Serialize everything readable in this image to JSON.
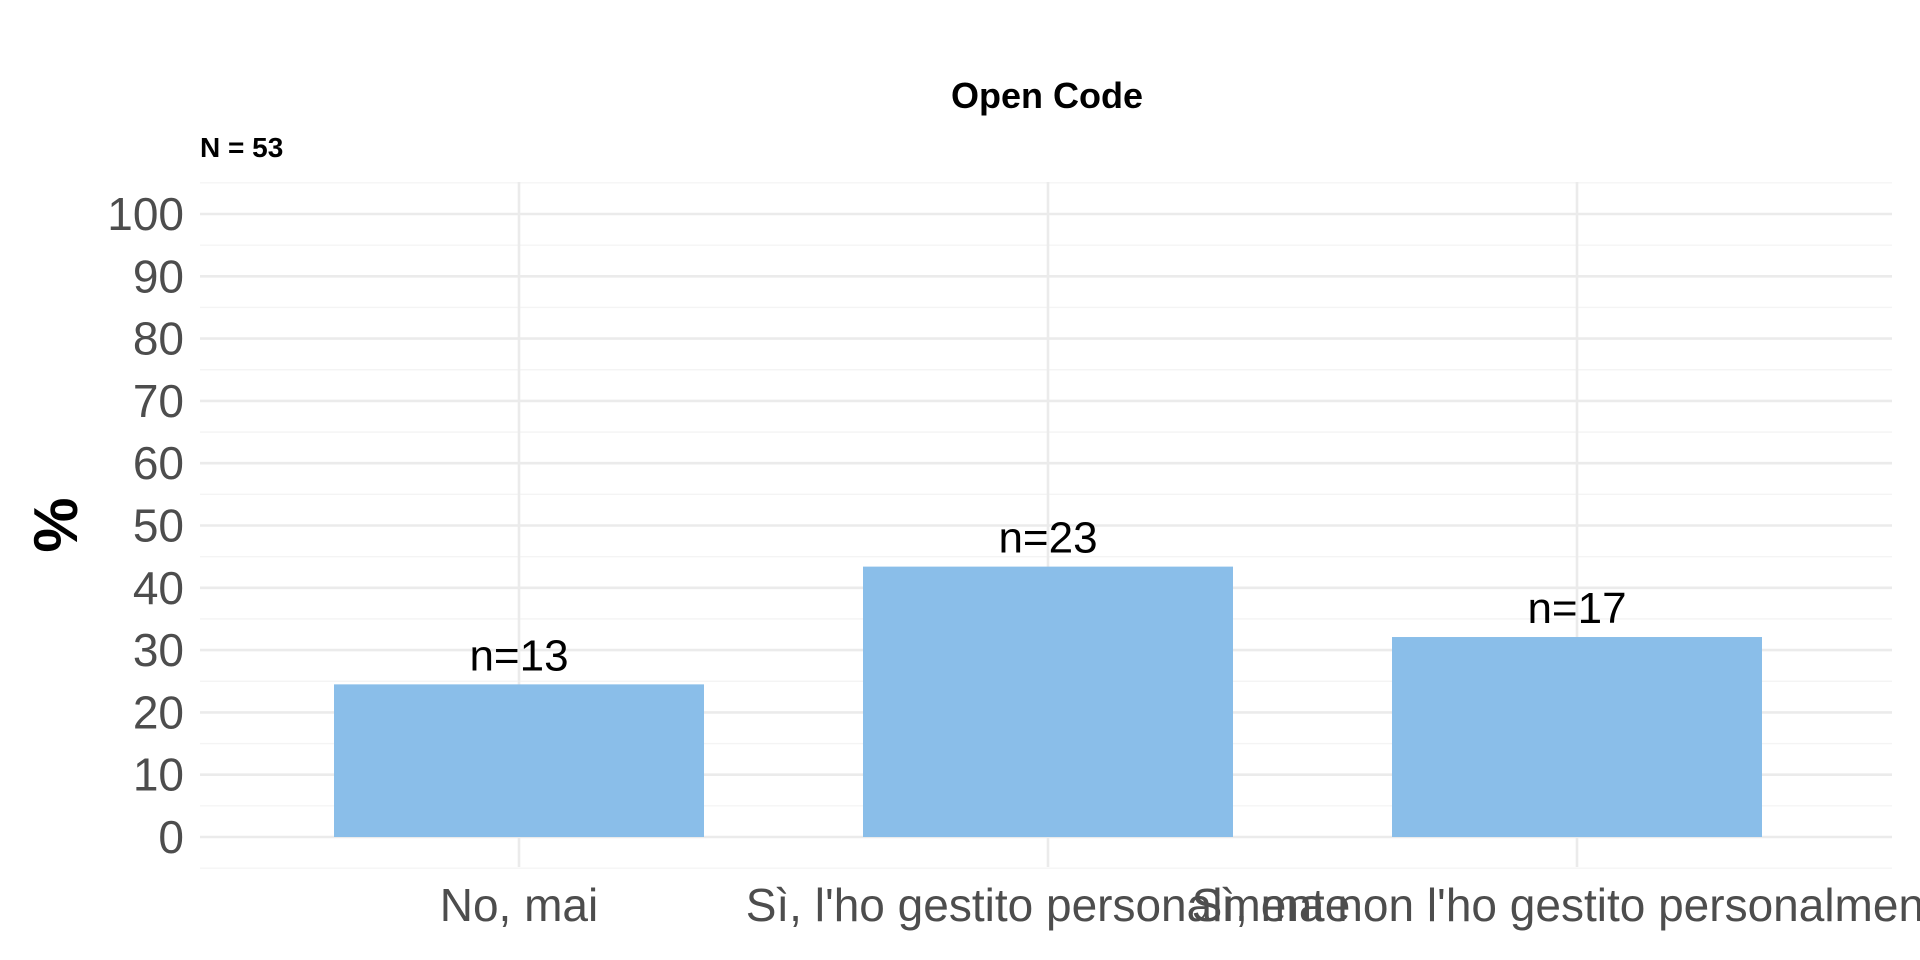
{
  "chart_data": {
    "type": "bar",
    "title": "Open Code",
    "subtitle": "N = 53",
    "xlabel": "",
    "ylabel": "%",
    "ylim": [
      0,
      100
    ],
    "yticks": [
      0,
      10,
      20,
      30,
      40,
      50,
      60,
      70,
      80,
      90,
      100
    ],
    "categories": [
      "No, mai",
      "Sì, l'ho gestito personalmente",
      "Sì, ma non l'ho gestito personalmente"
    ],
    "values": [
      24.5,
      43.4,
      32.1
    ],
    "data_labels": [
      "n=13",
      "n=23",
      "n=17"
    ],
    "grid": true,
    "legend": "none",
    "colors": {
      "bar": "#8abee9"
    }
  }
}
